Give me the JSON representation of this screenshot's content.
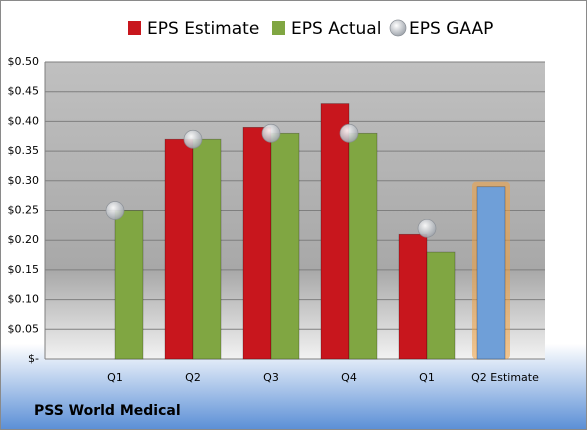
{
  "chart_data": {
    "type": "bar",
    "title": "PSS World Medical",
    "categories": [
      "Q1",
      "Q2",
      "Q3",
      "Q4",
      "Q1",
      "Q2 Estimate"
    ],
    "series": [
      {
        "name": "EPS Estimate",
        "color": "#c8161d",
        "values": [
          null,
          0.37,
          0.39,
          0.43,
          0.21,
          0.29
        ],
        "colors": [
          "#c8161d",
          "#c8161d",
          "#c8161d",
          "#c8161d",
          "#c8161d",
          "#6f9fd8"
        ]
      },
      {
        "name": "EPS Actual",
        "color": "#80a642",
        "values": [
          0.25,
          0.37,
          0.38,
          0.38,
          0.18,
          null
        ]
      },
      {
        "name": "EPS GAAP",
        "color": "#b8bcc4",
        "type": "scatter",
        "values": [
          0.25,
          0.37,
          0.38,
          0.38,
          0.22,
          null
        ]
      }
    ],
    "ylim": [
      0,
      0.5
    ],
    "yticks": [
      {
        "value": 0,
        "label": "$-"
      },
      {
        "value": 0.05,
        "label": "$0.05"
      },
      {
        "value": 0.1,
        "label": "$0.10"
      },
      {
        "value": 0.15,
        "label": "$0.15"
      },
      {
        "value": 0.2,
        "label": "$0.20"
      },
      {
        "value": 0.25,
        "label": "$0.25"
      },
      {
        "value": 0.3,
        "label": "$0.30"
      },
      {
        "value": 0.35,
        "label": "$0.35"
      },
      {
        "value": 0.4,
        "label": "$0.40"
      },
      {
        "value": 0.45,
        "label": "$0.45"
      },
      {
        "value": 0.5,
        "label": "$0.50"
      }
    ],
    "grid": true
  }
}
